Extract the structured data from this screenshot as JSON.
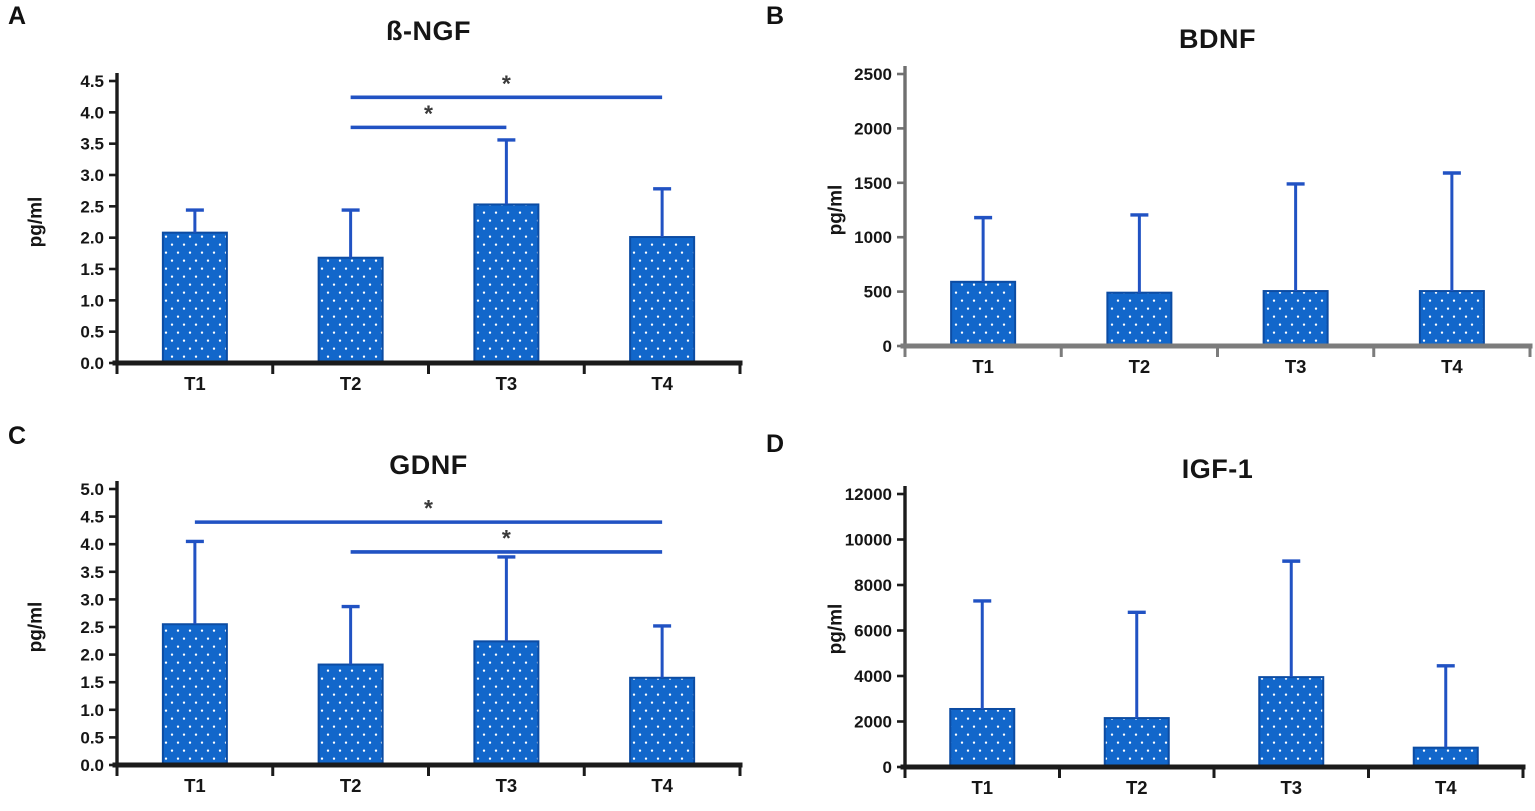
{
  "colors": {
    "bar_fill": "#1267CB",
    "bar_border": "#0C4CA3",
    "bar_dot": "#FFFFFF",
    "error_bar": "#2152C3",
    "sig_line": "#2152C3",
    "sig_star": "#3A3A3A",
    "text": "#161616",
    "axis_dark": "#1B1B1B",
    "axis_gray_y": "#6F6F6F",
    "axis_gray_x": "#7C7C7C",
    "background": "#FFFFFF"
  },
  "chart_data": [
    {
      "panel_label": "A",
      "title": "ß-NGF",
      "type": "bar",
      "ylabel": "pg/ml",
      "categories": [
        "T1",
        "T2",
        "T3",
        "T4"
      ],
      "values": [
        2.08,
        1.68,
        2.53,
        2.01
      ],
      "error_upper": [
        2.44,
        2.44,
        3.56,
        2.78
      ],
      "ylim": [
        0,
        4.5
      ],
      "ytick_labels": [
        "0.0",
        "0.5",
        "1.0",
        "1.5",
        "2.0",
        "2.5",
        "3.0",
        "3.5",
        "4.0",
        "4.5"
      ],
      "grid": false,
      "legend": "none",
      "yaxis_color": "#1B1B1B",
      "xaxis_color": "#1B1B1B",
      "significance": [
        {
          "from": "T2",
          "to": "T4",
          "y": 4.24,
          "label": "*"
        },
        {
          "from": "T2",
          "to": "T3",
          "y": 3.76,
          "label": "*"
        }
      ]
    },
    {
      "panel_label": "B",
      "title": "BDNF",
      "type": "bar",
      "ylabel": "pg/ml",
      "categories": [
        "T1",
        "T2",
        "T3",
        "T4"
      ],
      "values": [
        590,
        490,
        505,
        505
      ],
      "error_upper": [
        1180,
        1205,
        1490,
        1590
      ],
      "ylim": [
        0,
        2500
      ],
      "ytick_labels": [
        "0",
        "500",
        "1000",
        "1500",
        "2000",
        "2500"
      ],
      "grid": false,
      "legend": "none",
      "yaxis_color": "#6F6F6F",
      "xaxis_color": "#7C7C7C",
      "significance": []
    },
    {
      "panel_label": "C",
      "title": "GDNF",
      "type": "bar",
      "ylabel": "pg/ml",
      "categories": [
        "T1",
        "T2",
        "T3",
        "T4"
      ],
      "values": [
        2.55,
        1.82,
        2.24,
        1.58
      ],
      "error_upper": [
        4.05,
        2.87,
        3.77,
        2.52
      ],
      "ylim": [
        0,
        5.0
      ],
      "ytick_labels": [
        "0.0",
        "0.5",
        "1.0",
        "1.5",
        "2.0",
        "2.5",
        "3.0",
        "3.5",
        "4.0",
        "4.5",
        "5.0"
      ],
      "grid": false,
      "legend": "none",
      "yaxis_color": "#1B1B1B",
      "xaxis_color": "#1B1B1B",
      "significance": [
        {
          "from": "T1",
          "to": "T4",
          "y": 4.4,
          "label": "*"
        },
        {
          "from": "T2",
          "to": "T4",
          "y": 3.86,
          "label": "*"
        }
      ]
    },
    {
      "panel_label": "D",
      "title": "IGF-1",
      "type": "bar",
      "ylabel": "pg/ml",
      "categories": [
        "T1",
        "T2",
        "T3",
        "T4"
      ],
      "values": [
        2550,
        2150,
        3950,
        850
      ],
      "error_upper": [
        7300,
        6800,
        9050,
        4450
      ],
      "ylim": [
        0,
        12000
      ],
      "ytick_labels": [
        "0",
        "2000",
        "4000",
        "6000",
        "8000",
        "10000",
        "12000"
      ],
      "grid": false,
      "legend": "none",
      "yaxis_color": "#1B1B1B",
      "xaxis_color": "#1B1B1B",
      "significance": []
    }
  ]
}
